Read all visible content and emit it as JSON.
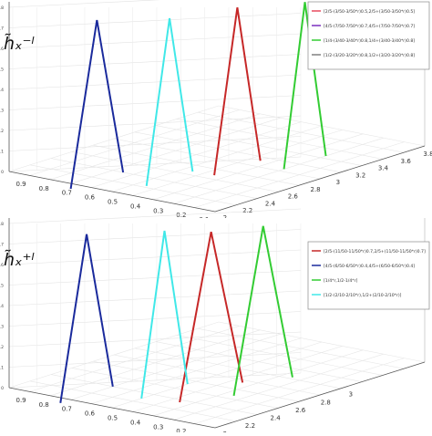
{
  "chart_data": [
    {
      "type": "line",
      "panel_label": "h̃ₓ⁻ˡ",
      "legend_position": "top-right",
      "z_ticks": [
        "0.8",
        "0.7",
        "0.6",
        "0.5",
        "0.4",
        "0.3",
        "0.2",
        "0.1",
        "0"
      ],
      "depth_ticks": [
        "0.9",
        "0.8",
        "0.7",
        "0.6",
        "0.5",
        "0.4",
        "0.3",
        "0.2",
        "0.1"
      ],
      "x_ticks": [
        "2",
        "2.2",
        "2.4",
        "2.6",
        "2.8",
        "3",
        "3.2",
        "3.4",
        "3.6",
        "3.8"
      ],
      "series": [
        {
          "name": "[2/5-(3/50-3/50*r)0.5,2/5+(3/50-3/50*r)0.5]",
          "color": "#e84a5f",
          "apex_x": 2.75,
          "apex_depth": 0.38,
          "half_width": 0.18
        },
        {
          "name": "[4/5-(7/50-7/50*r)0.7,4/5+(7/50-7/50*r)0.7]",
          "color": "#7b2fbf",
          "apex_x": 2.25,
          "apex_depth": 0.75,
          "half_width": 0.3
        },
        {
          "name": "[1/4-(3/40-3/40*r)0.8,1/4+(3/40-3/40*r)0.8]",
          "color": "#33cc33",
          "apex_x": 3.1,
          "apex_depth": 0.25,
          "half_width": 0.2
        },
        {
          "name": "[1/2-(3/20-3/20*r)0.8,1/2+(3/20-3/20*r)0.8]",
          "color": "#808080",
          "apex_x": 2.6,
          "apex_depth": 0.5,
          "half_width": 0.2
        }
      ],
      "drawn_lines": [
        {
          "color": "#1a2a9c",
          "apex_x": 2.05,
          "apex_depth": 0.65,
          "half_width": 0.25
        },
        {
          "color": "#40e8e8",
          "apex_x": 2.35,
          "apex_depth": 0.45,
          "half_width": 0.22
        },
        {
          "color": "#c62828",
          "apex_x": 2.8,
          "apex_depth": 0.35,
          "half_width": 0.22
        },
        {
          "color": "#33cc33",
          "apex_x": 3.15,
          "apex_depth": 0.2,
          "half_width": 0.2
        }
      ]
    },
    {
      "type": "line",
      "panel_label": "h̃ₓ⁺ˡ",
      "legend_position": "top-right",
      "z_ticks": [
        "0.8",
        "0.7",
        "0.6",
        "0.5",
        "0.4",
        "0.3",
        "0.2",
        "0.1",
        "0"
      ],
      "depth_ticks": [
        "0.9",
        "0.8",
        "0.7",
        "0.6",
        "0.5",
        "0.4",
        "0.3",
        "0.2",
        "0.1"
      ],
      "x_ticks": [
        "2",
        "2.2",
        "2.4",
        "2.6",
        "2.8",
        "3"
      ],
      "series": [
        {
          "name": "[2/5-(11/50-11/50*r)0.7,2/5+(11/50-11/50*r)0.7]",
          "color": "#c62828",
          "apex_x": 2.55,
          "apex_depth": 0.35,
          "half_width": 0.3
        },
        {
          "name": "[4/5-(6/50-6/50*r)0.4,4/5+(6/50-6/50*r)0.4]",
          "color": "#1a2a9c",
          "apex_x": 2.05,
          "apex_depth": 0.7,
          "half_width": 0.25
        },
        {
          "name": "[1/4*r,1/2-1/4*r]",
          "color": "#33cc33",
          "apex_x": 2.85,
          "apex_depth": 0.25,
          "half_width": 0.28
        },
        {
          "name": "[1/2-(2/10-2/10*r),1/2+(2/10-2/10*r)]",
          "color": "#40e8e8",
          "apex_x": 2.4,
          "apex_depth": 0.5,
          "half_width": 0.22
        }
      ]
    }
  ]
}
